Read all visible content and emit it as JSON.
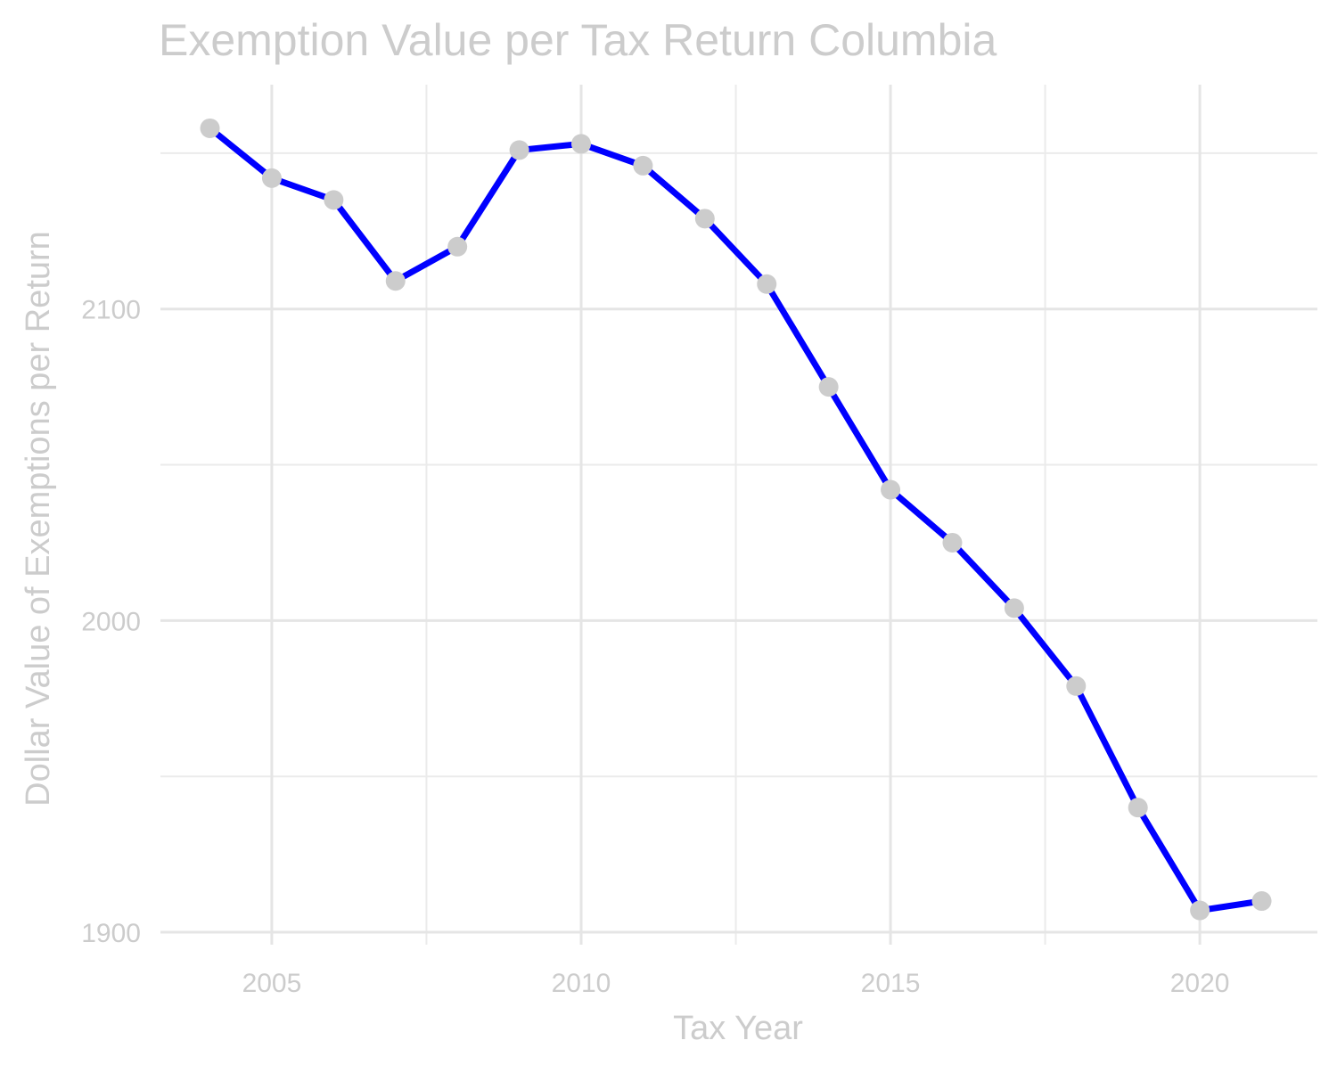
{
  "chart_data": {
    "type": "line",
    "title": "Exemption Value per Tax Return Columbia",
    "xlabel": "Tax Year",
    "ylabel": "Dollar Value of Exemptions per Return",
    "xlim": [
      2003.2,
      2021.9
    ],
    "ylim": [
      1896,
      2172
    ],
    "x_ticks": [
      2005,
      2010,
      2015,
      2020
    ],
    "x_minor_ticks": [
      2007.5,
      2012.5,
      2017.5
    ],
    "y_ticks": [
      1900,
      2000,
      2100
    ],
    "y_minor_ticks": [
      1950,
      2050,
      2150
    ],
    "grid": true,
    "legend": "none",
    "colors": {
      "line": "#0000ff",
      "point": "#cccccc",
      "text": "#cccccc",
      "grid_major": "#e5e5e5",
      "grid_minor": "#ebebeb"
    },
    "series": [
      {
        "x": [
          2004,
          2005,
          2006,
          2007,
          2008,
          2009,
          2010,
          2011,
          2012,
          2013,
          2014,
          2015,
          2016,
          2017,
          2018,
          2019,
          2020,
          2021
        ],
        "values": [
          2158,
          2142,
          2135,
          2109,
          2120,
          2151,
          2153,
          2146,
          2129,
          2108,
          2075,
          2042,
          2025,
          2004,
          1979,
          1940,
          1907,
          1910
        ]
      }
    ]
  }
}
